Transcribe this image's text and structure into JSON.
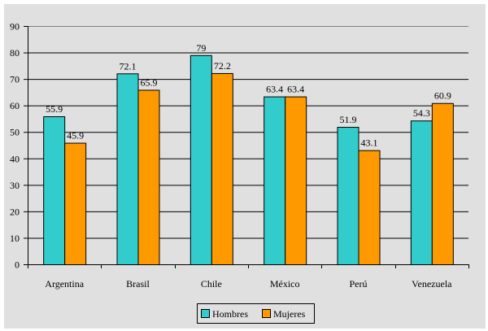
{
  "chart_data": {
    "type": "bar",
    "title": "",
    "xlabel": "",
    "ylabel": "",
    "categories": [
      "Argentina",
      "Brasil",
      "Chile",
      "México",
      "Perú",
      "Venezuela"
    ],
    "series": [
      {
        "name": "Hombres",
        "color": "#33cccc",
        "values": [
          55.9,
          72.1,
          79,
          63.4,
          51.9,
          54.3
        ],
        "labels": [
          "55.9",
          "72.1",
          "79",
          "63.4",
          "51.9",
          "54.3"
        ]
      },
      {
        "name": "Mujeres",
        "color": "#ff9900",
        "values": [
          45.9,
          65.9,
          72.2,
          63.4,
          43.1,
          60.9
        ],
        "labels": [
          "45.9",
          "65.9",
          "72.2",
          "63.4",
          "43.1",
          "60.9"
        ]
      }
    ],
    "ylim": [
      0,
      90
    ],
    "yticks": [
      0,
      10,
      20,
      30,
      40,
      50,
      60,
      70,
      80,
      90
    ],
    "grid": true,
    "legend_position": "bottom"
  }
}
